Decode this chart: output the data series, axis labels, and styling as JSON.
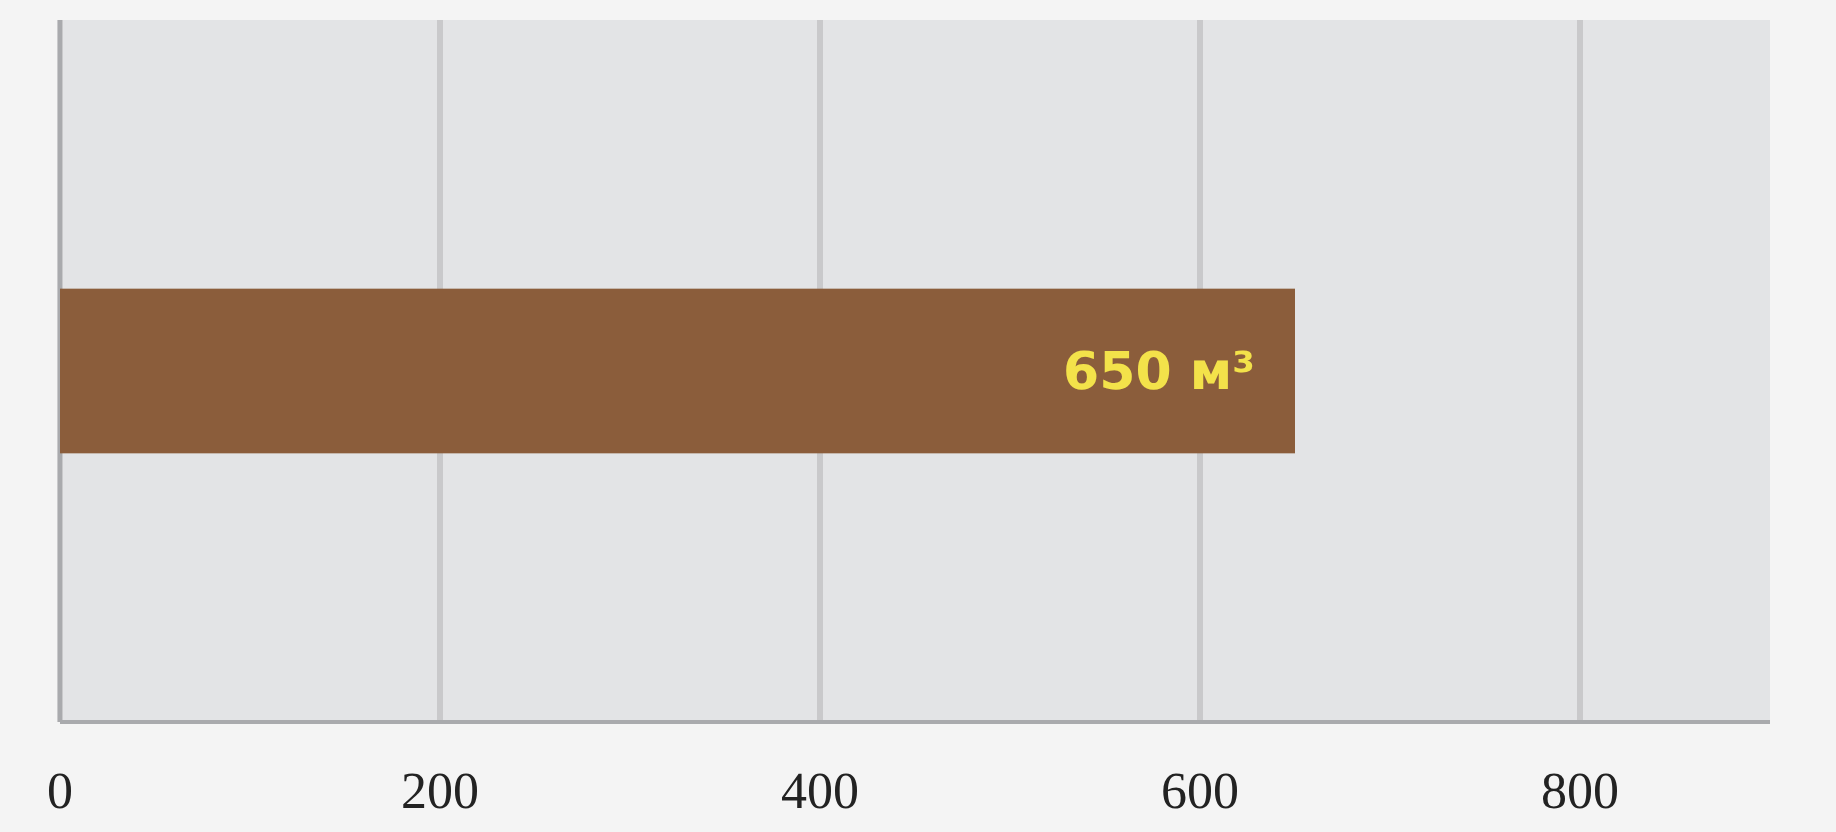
{
  "chart_data": {
    "type": "bar",
    "orientation": "horizontal",
    "categories": [
      null
    ],
    "values": [
      650
    ],
    "color": "#8b5d3b",
    "value_labels": [
      "650 м³"
    ],
    "xlim": [
      0,
      900
    ],
    "xticks": [
      0,
      200,
      400,
      600,
      800
    ],
    "grid": "x"
  }
}
